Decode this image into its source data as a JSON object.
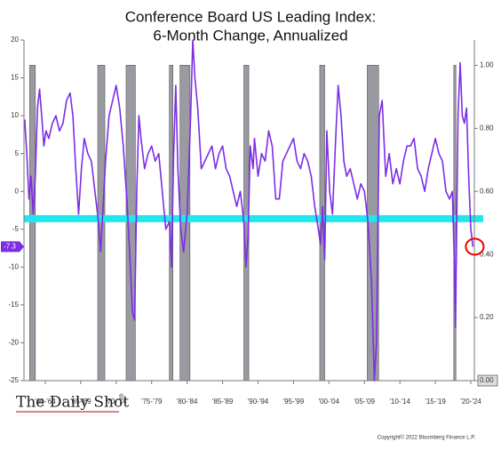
{
  "chart_data": {
    "type": "line",
    "title": "Conference Board US Leading Index:",
    "subtitle": "6-Month Change, Annualized",
    "source": "Copyright© 2022 Bloomberg Finance L.P.",
    "brand": "The Daily Shot",
    "brand_mark": "®",
    "xlim": [
      1959.5,
      2023
    ],
    "xticks": [
      {
        "value": 1962.5,
        "label": "'60-'64"
      },
      {
        "value": 1967.5,
        "label": "'65-'69"
      },
      {
        "value": 1972.5,
        "label": "'70-'74"
      },
      {
        "value": 1977.5,
        "label": "'75-'79"
      },
      {
        "value": 1982.5,
        "label": "'80-'84"
      },
      {
        "value": 1987.5,
        "label": "'85-'89"
      },
      {
        "value": 1992.5,
        "label": "'90-'94"
      },
      {
        "value": 1997.5,
        "label": "'95-'99"
      },
      {
        "value": 2002.5,
        "label": "'00-'04"
      },
      {
        "value": 2007.5,
        "label": "'05-'09"
      },
      {
        "value": 2012.5,
        "label": "'10-'14"
      },
      {
        "value": 2017.5,
        "label": "'15-'19"
      },
      {
        "value": 2022.5,
        "label": "'20-'24"
      }
    ],
    "ylim": [
      -25,
      20
    ],
    "yticks": [
      20,
      15,
      10,
      5,
      0,
      -5,
      -10,
      -15,
      -20,
      -25
    ],
    "y2lim": [
      0,
      1.08
    ],
    "y2ticks": [
      {
        "value": 1,
        "label": "1.00"
      },
      {
        "value": 0.8,
        "label": "0.80"
      },
      {
        "value": 0.6,
        "label": "0.60"
      },
      {
        "value": 0.4,
        "label": "0.40"
      },
      {
        "value": 0.2,
        "label": "0.20"
      },
      {
        "value": 0,
        "label": "0.00"
      }
    ],
    "recessions": [
      [
        1960.3,
        1961.1
      ],
      [
        1969.9,
        1970.9
      ],
      [
        1973.9,
        1975.2
      ],
      [
        1980.0,
        1980.5
      ],
      [
        1981.5,
        1982.9
      ],
      [
        1990.5,
        1991.2
      ],
      [
        2001.2,
        2001.9
      ],
      [
        2007.9,
        2009.5
      ],
      [
        2020.1,
        2020.4
      ]
    ],
    "recession_level": 1,
    "recession_color": "#9a9aa2",
    "threshold": -3.6,
    "threshold_color": "#22e6ee",
    "last_value": {
      "value": -7.3,
      "label": "-7.3"
    },
    "x": [
      1959.6,
      1959.9,
      1960.2,
      1960.5,
      1960.8,
      1961.1,
      1961.4,
      1961.7,
      1962,
      1962.3,
      1962.6,
      1963,
      1963.5,
      1964,
      1964.5,
      1965,
      1965.5,
      1966,
      1966.4,
      1966.8,
      1967.2,
      1967.6,
      1968,
      1968.5,
      1969,
      1969.5,
      1970,
      1970.3,
      1970.6,
      1971,
      1971.5,
      1972,
      1972.5,
      1973,
      1973.5,
      1974,
      1974.4,
      1974.8,
      1975.1,
      1975.4,
      1975.7,
      1976,
      1976.5,
      1977,
      1977.5,
      1978,
      1978.5,
      1979,
      1979.5,
      1980,
      1980.3,
      1980.6,
      1980.9,
      1981.2,
      1981.6,
      1982,
      1982.5,
      1983,
      1983.3,
      1983.6,
      1984,
      1984.5,
      1985,
      1985.5,
      1986,
      1986.5,
      1987,
      1987.5,
      1988,
      1988.5,
      1989,
      1989.5,
      1990,
      1990.5,
      1990.8,
      1991.1,
      1991.4,
      1991.8,
      1992,
      1992.5,
      1993,
      1993.5,
      1994,
      1994.5,
      1995,
      1995.5,
      1996,
      1996.5,
      1997,
      1997.5,
      1998,
      1998.5,
      1999,
      1999.5,
      2000,
      2000.5,
      2001,
      2001.3,
      2001.6,
      2001.9,
      2002.2,
      2002.6,
      2003,
      2003.4,
      2003.8,
      2004.2,
      2004.6,
      2005,
      2005.5,
      2006,
      2006.5,
      2007,
      2007.5,
      2008,
      2008.5,
      2008.9,
      2009.2,
      2009.6,
      2010,
      2010.5,
      2011,
      2011.5,
      2012,
      2012.5,
      2013,
      2013.5,
      2014,
      2014.5,
      2015,
      2015.5,
      2016,
      2016.5,
      2017,
      2017.5,
      2018,
      2018.5,
      2019,
      2019.5,
      2019.9,
      2020.2,
      2020.35,
      2020.5,
      2020.7,
      2021,
      2021.3,
      2021.6,
      2021.9,
      2022.2,
      2022.5,
      2022.8
    ],
    "series": [
      {
        "name": "Leading Index",
        "color": "#7d2de6",
        "values": [
          9.5,
          5,
          -1,
          2,
          -3,
          2,
          11,
          13.5,
          10,
          6,
          8,
          7,
          9,
          10,
          8,
          9,
          12,
          13,
          10,
          3,
          -3,
          3,
          7,
          5,
          4,
          0,
          -4,
          -8,
          -3,
          4,
          10,
          12,
          14,
          11,
          6,
          -1,
          -8,
          -16,
          -17,
          0,
          10,
          7,
          3,
          5,
          6,
          4,
          5,
          0,
          -5,
          -4,
          -10,
          5,
          14,
          3,
          -5,
          -8,
          -3,
          10,
          20,
          15,
          11,
          3,
          4,
          5,
          6,
          3,
          5,
          6,
          3,
          2,
          0,
          -2,
          0,
          -4,
          -10,
          -6,
          6,
          3,
          7,
          2,
          5,
          4,
          8,
          6,
          -1,
          -1,
          4,
          5,
          6,
          7,
          4,
          3,
          5,
          4,
          2,
          -2,
          -5,
          -7,
          -2,
          -9,
          8,
          0,
          -3,
          6,
          14,
          10,
          4,
          2,
          3,
          1,
          -1,
          1,
          0,
          -4,
          -12,
          -25,
          -20,
          10,
          12,
          2,
          5,
          1,
          3,
          1,
          4,
          6,
          6,
          7,
          3,
          2,
          0,
          3,
          5,
          7,
          5,
          4,
          0,
          -1,
          0,
          -10,
          -18,
          -5,
          10,
          17,
          10,
          9,
          11,
          2,
          -5,
          -7.3
        ]
      }
    ]
  }
}
